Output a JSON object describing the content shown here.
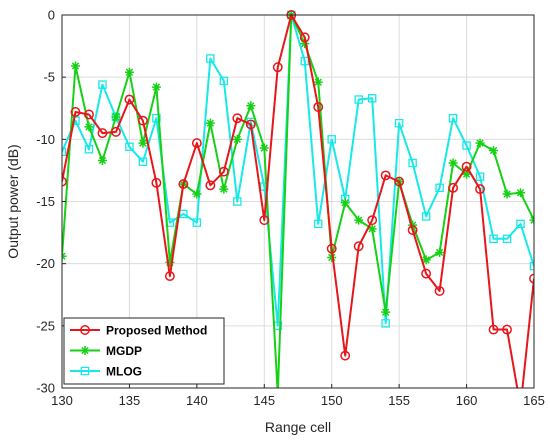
{
  "chart_data": {
    "type": "line",
    "xlabel": "Range cell",
    "ylabel": "Output power (dB)",
    "xlim": [
      130,
      165
    ],
    "ylim": [
      -30,
      0
    ],
    "xticks": [
      130,
      135,
      140,
      145,
      150,
      155,
      160,
      165
    ],
    "yticks": [
      0,
      -5,
      -10,
      -15,
      -20,
      -25,
      -30
    ],
    "grid": true,
    "legend_position": "bottom-left",
    "x": [
      130,
      131,
      132,
      133,
      134,
      135,
      136,
      137,
      138,
      139,
      140,
      141,
      142,
      143,
      144,
      145,
      146,
      147,
      148,
      149,
      150,
      151,
      152,
      153,
      154,
      155,
      156,
      157,
      158,
      159,
      160,
      161,
      162,
      163,
      164,
      165
    ],
    "series": [
      {
        "name": "Proposed Method",
        "color": "#e8161b",
        "marker": "circle",
        "values": [
          -13.4,
          -7.8,
          -8.0,
          -9.5,
          -9.4,
          -6.8,
          -8.5,
          -13.5,
          -21.0,
          -13.6,
          -10.3,
          -13.7,
          -12.6,
          -8.3,
          -8.8,
          -16.5,
          -4.2,
          0,
          -1.8,
          -7.4,
          -18.8,
          -27.4,
          -18.6,
          -16.5,
          -12.9,
          -13.4,
          -17.3,
          -20.8,
          -22.2,
          -13.9,
          -12.2,
          -14.0,
          -25.3,
          -25.3,
          -31.5,
          -21.2
        ]
      },
      {
        "name": "MGDP",
        "color": "#17d116",
        "marker": "star",
        "values": [
          -19.4,
          -4.1,
          -9.0,
          -11.7,
          -8.2,
          -4.6,
          -10.3,
          -5.8,
          -19.9,
          -13.6,
          -14.4,
          -8.7,
          -14.0,
          -10.0,
          -7.3,
          -10.7,
          -30.5,
          0,
          -2.3,
          -5.4,
          -19.5,
          -15.1,
          -16.5,
          -17.2,
          -23.9,
          -13.4,
          -16.9,
          -19.7,
          -19.1,
          -11.9,
          -12.8,
          -10.3,
          -10.9,
          -14.4,
          -14.3,
          -16.5
        ]
      },
      {
        "name": "MLOG",
        "color": "#18e8e8",
        "marker": "square",
        "values": [
          -11.0,
          -8.5,
          -10.8,
          -5.6,
          -8.2,
          -10.6,
          -11.8,
          -8.3,
          -16.7,
          -16.0,
          -16.7,
          -3.5,
          -5.3,
          -15.0,
          -8.6,
          -13.8,
          -25.0,
          0,
          -3.7,
          -16.8,
          -10.0,
          -14.8,
          -6.8,
          -6.7,
          -24.8,
          -8.7,
          -11.9,
          -16.2,
          -13.9,
          -8.3,
          -10.5,
          -13.0,
          -18.0,
          -18.0,
          -16.8,
          -20.2
        ]
      }
    ]
  }
}
